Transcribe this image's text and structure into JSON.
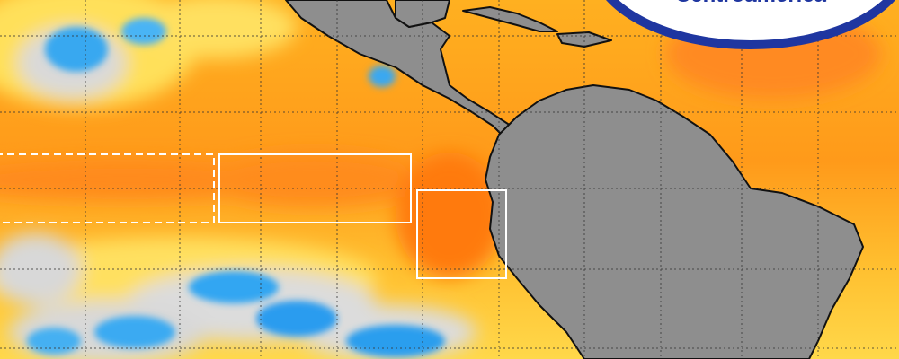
{
  "logo": {
    "text": "Centroamérica"
  }
}
